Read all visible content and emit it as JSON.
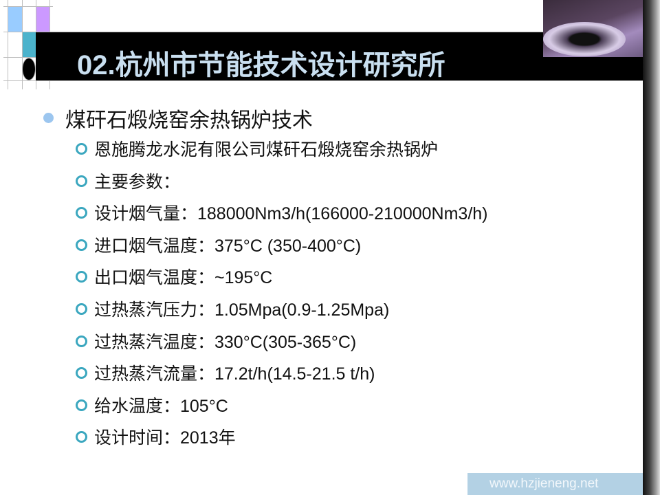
{
  "slide": {
    "title": "02.杭州市节能技术设计研究所",
    "heading": "煤矸石煅烧窑余热锅炉技术",
    "items": [
      "恩施腾龙水泥有限公司煤矸石煅烧窑余热锅炉",
      "主要参数：",
      "设计烟气量：188000Nm3/h(166000-210000Nm3/h)",
      "进口烟气温度：375°C (350-400°C)",
      "出口烟气温度：~195°C",
      "过热蒸汽压力：1.05Mpa(0.9-1.25Mpa)",
      "过热蒸汽温度：330°C(305-365°C)",
      "过热蒸汽流量：17.2t/h(14.5-21.5 t/h)",
      "给水温度：105°C",
      "设计时间：2013年"
    ],
    "footer_url": "www.hzjieneng.net"
  },
  "colors": {
    "title_bar": "#000000",
    "title_text": "#c9dff0",
    "bullet_l1": "#9cc6ef",
    "bullet_l2": "#3ba7bf",
    "footer_bg": "#b3d1e4",
    "square_light_blue": "#99ccff",
    "square_purple": "#cc99ff",
    "square_teal": "#4bb3cc"
  }
}
